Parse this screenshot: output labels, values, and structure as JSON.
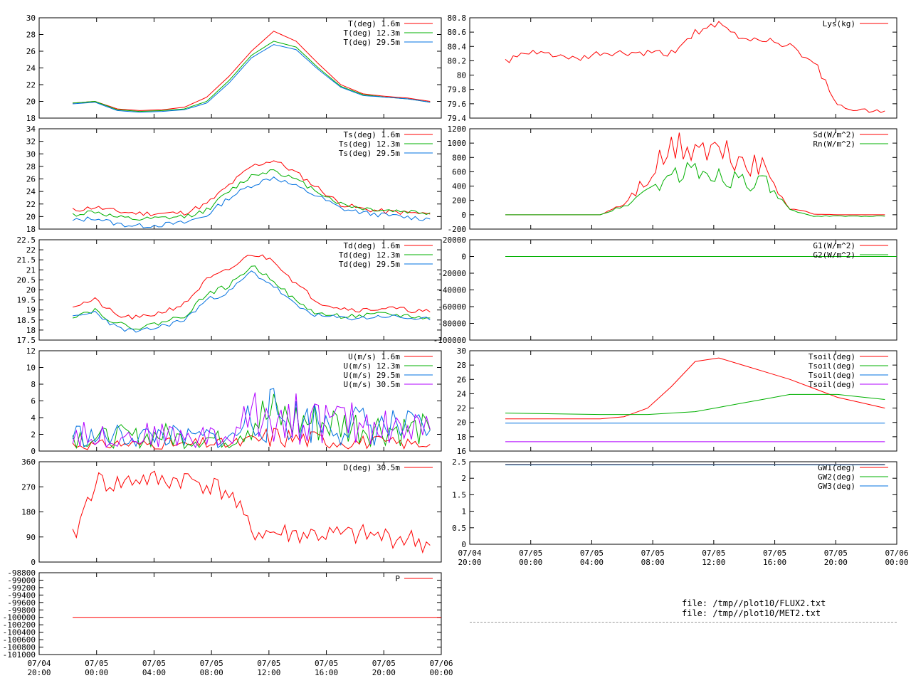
{
  "colors": {
    "red": "#ff0000",
    "green": "#00b000",
    "blue": "#0070e0",
    "purple": "#b000ff"
  },
  "time_axis": {
    "range": [
      "07/04 20:00",
      "07/06 00:00"
    ],
    "ticks": [
      {
        "top": "07/04",
        "bottom": "20:00"
      },
      {
        "top": "07/05",
        "bottom": "00:00"
      },
      {
        "top": "07/05",
        "bottom": "04:00"
      },
      {
        "top": "07/05",
        "bottom": "08:00"
      },
      {
        "top": "07/05",
        "bottom": "12:00"
      },
      {
        "top": "07/05",
        "bottom": "16:00"
      },
      {
        "top": "07/05",
        "bottom": "20:00"
      },
      {
        "top": "07/06",
        "bottom": "00:00"
      }
    ]
  },
  "files": [
    "file: /tmp//plot10/FLUX2.txt",
    "file: /tmp//plot10/MET2.txt"
  ],
  "chart_data": [
    {
      "id": "T",
      "type": "line",
      "ylim": [
        18,
        30
      ],
      "yticks": [
        "18",
        "20",
        "22",
        "24",
        "26",
        "28",
        "30"
      ],
      "series": [
        {
          "name": "T(deg)  1.6m",
          "color": "red",
          "x": [
            4,
            5,
            6,
            7,
            8,
            9,
            10,
            11,
            12,
            13,
            14,
            15,
            16,
            17,
            18,
            19,
            20
          ],
          "values": [
            19.8,
            20,
            19.1,
            18.9,
            19,
            19.3,
            20.5,
            23,
            26,
            28.4,
            27.2,
            24.5,
            22,
            20.9,
            20.6,
            20.4,
            20
          ]
        },
        {
          "name": "T(deg) 12.3m",
          "color": "green",
          "x": [
            4,
            5,
            6,
            7,
            8,
            9,
            10,
            11,
            12,
            13,
            14,
            15,
            16,
            17,
            18,
            19,
            20
          ],
          "values": [
            19.8,
            20,
            19,
            18.8,
            18.9,
            19.1,
            20,
            22.5,
            25.5,
            27.2,
            26.5,
            24,
            21.8,
            20.8,
            20.5,
            20.3,
            19.9
          ]
        },
        {
          "name": "T(deg) 29.5m",
          "color": "blue",
          "x": [
            4,
            5,
            6,
            7,
            8,
            9,
            10,
            11,
            12,
            13,
            14,
            15,
            16,
            17,
            18,
            19,
            20
          ],
          "values": [
            19.7,
            19.9,
            18.9,
            18.7,
            18.8,
            19,
            19.8,
            22.2,
            25.2,
            26.8,
            26.2,
            23.8,
            21.7,
            20.7,
            20.5,
            20.3,
            19.9
          ]
        }
      ]
    },
    {
      "id": "Ts",
      "type": "line",
      "ylim": [
        18,
        34
      ],
      "yticks": [
        "18",
        "20",
        "22",
        "24",
        "26",
        "28",
        "30",
        "32",
        "34"
      ],
      "series": [
        {
          "name": "Ts(deg)  1.6m",
          "color": "red",
          "x": [
            4,
            5,
            6,
            7,
            8,
            9,
            10,
            11,
            12,
            13,
            14,
            15,
            16,
            17,
            18,
            19,
            20
          ],
          "values": [
            21,
            21.5,
            20.8,
            20.5,
            20.5,
            20.6,
            22,
            25,
            28,
            29,
            27,
            24.5,
            22,
            21.2,
            20.8,
            20.6,
            20.4
          ]
        },
        {
          "name": "Ts(deg) 12.3m",
          "color": "green",
          "x": [
            4,
            5,
            6,
            7,
            8,
            9,
            10,
            11,
            12,
            13,
            14,
            15,
            16,
            17,
            18,
            19,
            20
          ],
          "values": [
            20.3,
            20.8,
            19.8,
            19.5,
            19.7,
            20,
            21,
            24,
            26.5,
            27.5,
            25.8,
            24,
            22,
            21.3,
            21,
            20.8,
            20.6
          ]
        },
        {
          "name": "Ts(deg) 29.5m",
          "color": "blue",
          "x": [
            4,
            5,
            6,
            7,
            8,
            9,
            10,
            11,
            12,
            13,
            14,
            15,
            16,
            17,
            18,
            19,
            20
          ],
          "values": [
            19.3,
            19.8,
            18.8,
            18.5,
            18.7,
            19,
            20.2,
            23,
            25,
            26.3,
            24.8,
            23.2,
            21.3,
            20.6,
            20.2,
            19.9,
            19.6
          ]
        }
      ]
    },
    {
      "id": "Td",
      "type": "line",
      "ylim": [
        17.5,
        22.5
      ],
      "yticks": [
        "17.5",
        "18",
        "18.5",
        "19",
        "19.5",
        "20",
        "20.5",
        "21",
        "21.5",
        "22",
        "22.5"
      ],
      "series": [
        {
          "name": "Td(deg)  1.6m",
          "color": "red",
          "x": [
            4,
            5,
            6,
            7,
            8,
            9,
            10,
            11,
            12,
            13,
            14,
            15,
            16,
            17,
            18,
            19,
            20
          ],
          "values": [
            19.2,
            19.5,
            18.7,
            18.6,
            18.9,
            19.3,
            20.5,
            21,
            21.8,
            21.5,
            20.3,
            19.4,
            19.1,
            19,
            19.1,
            19,
            18.9
          ]
        },
        {
          "name": "Td(deg) 12.3m",
          "color": "green",
          "x": [
            4,
            5,
            6,
            7,
            8,
            9,
            10,
            11,
            12,
            13,
            14,
            15,
            16,
            17,
            18,
            19,
            20
          ],
          "values": [
            18.7,
            19,
            18.3,
            18.1,
            18.4,
            18.7,
            19.8,
            20.2,
            21.2,
            20.5,
            19.4,
            18.8,
            18.7,
            18.7,
            18.8,
            18.7,
            18.6
          ]
        },
        {
          "name": "Td(deg) 29.5m",
          "color": "blue",
          "x": [
            4,
            5,
            6,
            7,
            8,
            9,
            10,
            11,
            12,
            13,
            14,
            15,
            16,
            17,
            18,
            19,
            20
          ],
          "values": [
            18.6,
            18.9,
            18.1,
            17.9,
            18.2,
            18.5,
            19.5,
            19.9,
            20.9,
            20.2,
            19.2,
            18.7,
            18.6,
            18.6,
            18.7,
            18.6,
            18.5
          ]
        }
      ]
    },
    {
      "id": "U",
      "type": "line",
      "ylim": [
        0,
        12
      ],
      "yticks": [
        "0",
        "2",
        "4",
        "6",
        "8",
        "10",
        "12"
      ],
      "series": [
        {
          "name": "U(m/s)  1.6m",
          "color": "red",
          "x": [
            4,
            5,
            6,
            7,
            8,
            9,
            10,
            11,
            12,
            13,
            14,
            15,
            16,
            17,
            18,
            19,
            20
          ],
          "values": [
            0.8,
            0.7,
            0.9,
            0.8,
            1,
            0.7,
            1,
            0.8,
            1.2,
            1.8,
            1.5,
            1.4,
            1.2,
            1.1,
            1,
            0.9,
            0.8
          ]
        },
        {
          "name": "U(m/s) 12.3m",
          "color": "green",
          "x": [
            4,
            5,
            6,
            7,
            8,
            9,
            10,
            11,
            12,
            13,
            14,
            15,
            16,
            17,
            18,
            19,
            20
          ],
          "values": [
            2,
            1.5,
            1.8,
            1.6,
            2,
            1.4,
            1.6,
            1.2,
            3.8,
            4.2,
            3.6,
            3.5,
            3.2,
            3,
            2.8,
            2.6,
            2.5
          ]
        },
        {
          "name": "U(m/s) 29.5m",
          "color": "blue",
          "x": [
            4,
            5,
            6,
            7,
            8,
            9,
            10,
            11,
            12,
            13,
            14,
            15,
            16,
            17,
            18,
            19,
            20
          ],
          "values": [
            2.1,
            1.6,
            1.8,
            1.7,
            2,
            1.5,
            1.7,
            1.3,
            4,
            4.3,
            3.7,
            3.6,
            3.3,
            3.1,
            2.9,
            2.7,
            2.5
          ]
        },
        {
          "name": "U(m/s) 30.5m",
          "color": "purple",
          "x": [
            4,
            5,
            6,
            7,
            8,
            9,
            10,
            11,
            12,
            13,
            14,
            15,
            16,
            17,
            18,
            19,
            20
          ],
          "values": [
            2.2,
            1.7,
            1.9,
            1.8,
            2.1,
            1.6,
            1.8,
            1.4,
            4.2,
            4.5,
            3.9,
            3.7,
            3.4,
            3.2,
            3,
            2.8,
            2.6
          ]
        }
      ]
    },
    {
      "id": "D",
      "type": "line",
      "ylim": [
        0,
        360
      ],
      "yticks": [
        "0",
        "90",
        "180",
        "270",
        "360"
      ],
      "series": [
        {
          "name": "D(deg)  30.5m",
          "color": "red",
          "x": [
            4,
            5,
            6,
            7,
            8,
            9,
            10,
            11,
            12,
            13,
            14,
            15,
            16,
            17,
            18,
            19,
            20
          ],
          "values": [
            80,
            290,
            280,
            300,
            290,
            300,
            280,
            250,
            110,
            105,
            100,
            100,
            95,
            95,
            90,
            85,
            60
          ]
        }
      ]
    },
    {
      "id": "P",
      "type": "line",
      "ylim": [
        -101000,
        -98800
      ],
      "yticks": [
        "-101000",
        "-100800",
        "-100600",
        "-100400",
        "-100200",
        "-100000",
        "-99800",
        "-99600",
        "-99400",
        "-99200",
        "-99000",
        "-98800"
      ],
      "series": [
        {
          "name": "P",
          "color": "red",
          "x": [
            4,
            28
          ],
          "values": [
            -100000,
            -100000
          ]
        }
      ]
    },
    {
      "id": "Lys",
      "type": "line",
      "ylim": [
        79.4,
        80.8
      ],
      "yticks": [
        "79.4",
        "79.6",
        "79.8",
        "80",
        "80.2",
        "80.4",
        "80.6",
        "80.8"
      ],
      "series": [
        {
          "name": "Lys(kg)",
          "color": "red",
          "x": [
            4,
            5,
            6,
            7,
            8,
            9,
            10,
            11,
            12,
            13,
            14,
            15,
            16,
            17,
            18,
            19,
            20
          ],
          "values": [
            80.2,
            80.3,
            80.3,
            80.2,
            80.3,
            80.3,
            80.3,
            80.3,
            80.6,
            80.7,
            80.5,
            80.5,
            80.4,
            80.2,
            79.6,
            79.5,
            79.5
          ]
        }
      ]
    },
    {
      "id": "Sd",
      "type": "line",
      "ylim": [
        -200,
        1200
      ],
      "yticks": [
        "-200",
        "0",
        "200",
        "400",
        "600",
        "800",
        "1000",
        "1200"
      ],
      "series": [
        {
          "name": "Sd(W/m^2)",
          "color": "red",
          "x": [
            4,
            5,
            6,
            7,
            8,
            9,
            10,
            11,
            12,
            13,
            14,
            15,
            16,
            17,
            18,
            19,
            20
          ],
          "values": [
            0,
            0,
            0,
            0,
            0,
            150,
            500,
            900,
            950,
            850,
            750,
            600,
            100,
            10,
            0,
            0,
            0
          ]
        },
        {
          "name": "Rn(W/m^2)",
          "color": "green",
          "x": [
            4,
            5,
            6,
            7,
            8,
            9,
            10,
            11,
            12,
            13,
            14,
            15,
            16,
            17,
            18,
            19,
            20
          ],
          "values": [
            0,
            0,
            0,
            0,
            0,
            120,
            350,
            550,
            600,
            550,
            500,
            420,
            60,
            -20,
            -20,
            -20,
            -20
          ]
        }
      ]
    },
    {
      "id": "G",
      "type": "line",
      "ylim": [
        -100000,
        20000
      ],
      "yticks": [
        "-100000",
        "-80000",
        "-60000",
        "-40000",
        "-20000",
        "0",
        "20000"
      ],
      "series": [
        {
          "name": "G1(W/m^2)",
          "color": "red",
          "x": [
            4,
            28
          ],
          "values": [
            0,
            0
          ]
        },
        {
          "name": "G2(W/m^2)",
          "color": "green",
          "x": [
            4,
            28
          ],
          "values": [
            0,
            0
          ]
        }
      ]
    },
    {
      "id": "Tsoil",
      "type": "line",
      "ylim": [
        16,
        30
      ],
      "yticks": [
        "16",
        "18",
        "20",
        "22",
        "24",
        "26",
        "28",
        "30"
      ],
      "series": [
        {
          "name": "Tsoil(deg)",
          "color": "red",
          "x": [
            4,
            6,
            8,
            9,
            10,
            11,
            12,
            13,
            14,
            15,
            16,
            18,
            20
          ],
          "values": [
            20.5,
            20.5,
            20.5,
            20.8,
            22,
            25,
            28.5,
            29,
            28,
            27,
            26,
            23.5,
            22
          ]
        },
        {
          "name": "Tsoil(deg)",
          "color": "green",
          "x": [
            4,
            6,
            8,
            10,
            12,
            14,
            16,
            18,
            20
          ],
          "values": [
            21.3,
            21.2,
            21.1,
            21.1,
            21.5,
            22.7,
            23.9,
            23.9,
            23.2
          ]
        },
        {
          "name": "Tsoil(deg)",
          "color": "blue",
          "x": [
            4,
            20
          ],
          "values": [
            19.9,
            19.9
          ]
        },
        {
          "name": "Tsoil(deg)",
          "color": "purple",
          "x": [
            4,
            20
          ],
          "values": [
            17.3,
            17.3
          ]
        }
      ]
    },
    {
      "id": "GW",
      "type": "line",
      "ylim": [
        0,
        2.5
      ],
      "yticks": [
        "0",
        "0.5",
        "1",
        "1.5",
        "2",
        "2.5"
      ],
      "series": [
        {
          "name": "GW1(deg)",
          "color": "red",
          "x": [
            4,
            20
          ],
          "values": [
            2.42,
            2.42
          ]
        },
        {
          "name": "GW2(deg)",
          "color": "green",
          "x": [
            4,
            20
          ],
          "values": [
            2.41,
            2.41
          ]
        },
        {
          "name": "GW3(deg)",
          "color": "blue",
          "x": [
            4,
            20
          ],
          "values": [
            2.41,
            2.41
          ]
        }
      ]
    }
  ]
}
